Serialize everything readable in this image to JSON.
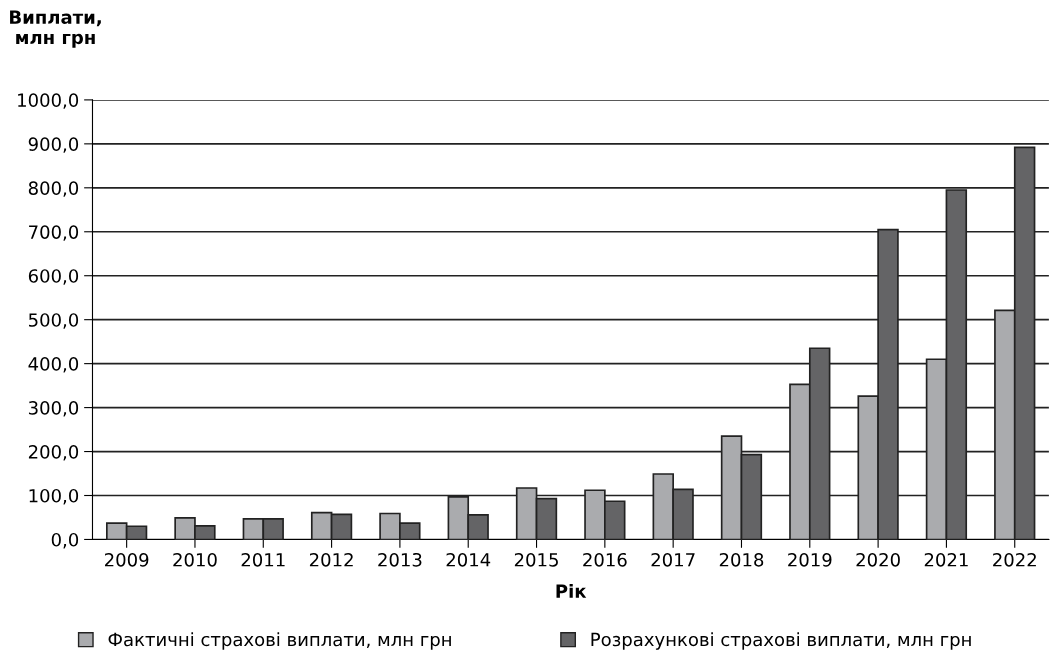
{
  "chart_data": {
    "type": "bar",
    "ylabel": "Виплати,\n млн грн",
    "xlabel": "Рік",
    "categories": [
      "2009",
      "2010",
      "2011",
      "2012",
      "2013",
      "2014",
      "2015",
      "2016",
      "2017",
      "2018",
      "2019",
      "2020",
      "2021",
      "2022"
    ],
    "series": [
      {
        "name": "Фактичні страхові виплати, млн грн",
        "color": "#aaabae",
        "values": [
          37,
          49,
          47,
          61,
          59,
          97,
          117,
          112,
          149,
          235,
          353,
          326,
          410,
          521
        ]
      },
      {
        "name": "Розрахункові страхові виплати, млн грн",
        "color": "#646466",
        "values": [
          30,
          31,
          47,
          57,
          37,
          56,
          93,
          87,
          114,
          193,
          435,
          705,
          795,
          892
        ]
      }
    ],
    "ylim": [
      0,
      1000
    ],
    "yticks": [
      {
        "value": 0,
        "label": "0,0"
      },
      {
        "value": 100,
        "label": "100,0"
      },
      {
        "value": 200,
        "label": "200,0"
      },
      {
        "value": 300,
        "label": "300,0"
      },
      {
        "value": 400,
        "label": "400,0"
      },
      {
        "value": 500,
        "label": "500,0"
      },
      {
        "value": 600,
        "label": "600,0"
      },
      {
        "value": 700,
        "label": "700,0"
      },
      {
        "value": 800,
        "label": "800,0"
      },
      {
        "value": 900,
        "label": "900,0"
      },
      {
        "value": 1000,
        "label": "1000,0"
      }
    ],
    "grid": "y",
    "legend": "bottom"
  }
}
